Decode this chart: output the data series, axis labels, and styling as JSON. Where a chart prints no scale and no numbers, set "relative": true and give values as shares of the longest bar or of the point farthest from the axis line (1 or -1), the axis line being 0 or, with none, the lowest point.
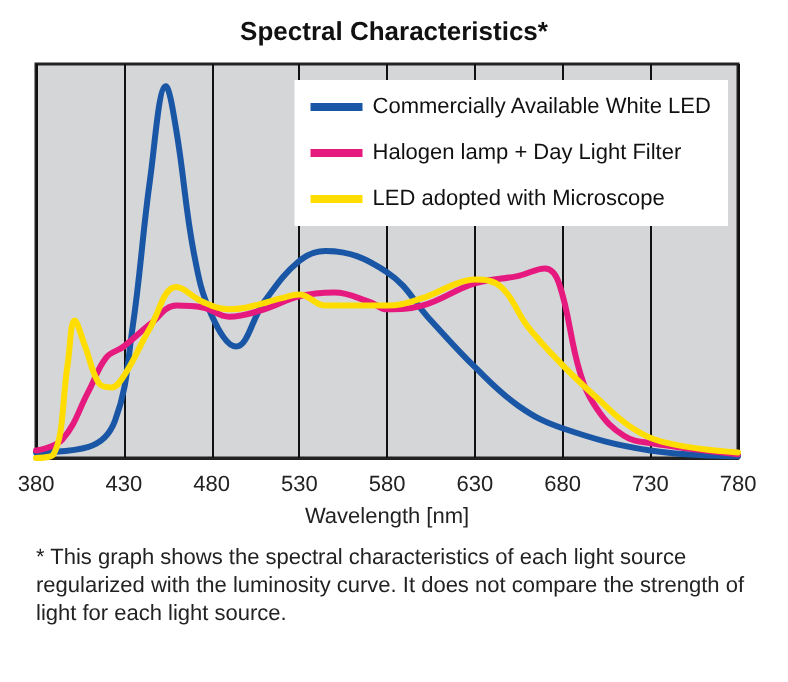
{
  "chart_data": {
    "type": "line",
    "title": "Spectral Characteristics*",
    "xlabel": "Wavelength [nm]",
    "relative": true,
    "xlim": [
      380,
      780
    ],
    "xticks": [
      380,
      430,
      480,
      530,
      580,
      630,
      680,
      730,
      780
    ],
    "grid": "x",
    "legend": "top right",
    "marker": "none",
    "line_style": "solid",
    "annotations": [
      "* This graph shows the spectral characteristics of each light source regularized with the luminosity curve. It does not compare the strength of light for each light source."
    ],
    "series": [
      {
        "name": "Commercially Available White LED",
        "color": "#1a56a6",
        "x": [
          380,
          410,
          425,
          435,
          445,
          454,
          460,
          470,
          480,
          494,
          510,
          530,
          545,
          580,
          605,
          630,
          655,
          680,
          730,
          780
        ],
        "values": [
          0.015,
          0.03,
          0.1,
          0.35,
          0.75,
          1,
          0.88,
          0.55,
          0.385,
          0.3,
          0.42,
          0.53,
          0.557,
          0.5,
          0.37,
          0.245,
          0.14,
          0.08,
          0.02,
          0.005
        ]
      },
      {
        "name": "Halogen lamp + Day Light Filter",
        "color": "#e6197f",
        "x": [
          380,
          395,
          410,
          420,
          430,
          445,
          460,
          475,
          490,
          510,
          530,
          550,
          570,
          580,
          600,
          630,
          655,
          670,
          678,
          690,
          700,
          715,
          730,
          780
        ],
        "values": [
          0.02,
          0.05,
          0.18,
          0.27,
          0.3,
          0.36,
          0.41,
          0.405,
          0.38,
          0.4,
          0.435,
          0.445,
          0.42,
          0.4,
          0.41,
          0.47,
          0.49,
          0.51,
          0.47,
          0.23,
          0.13,
          0.06,
          0.04,
          0.01
        ]
      },
      {
        "name": "LED adopted with Microscope",
        "color": "#ffdd00",
        "x": [
          380,
          390,
          398,
          402,
          408,
          416,
          423,
          430,
          445,
          460,
          475,
          490,
          500,
          520,
          530,
          545,
          560,
          580,
          600,
          620,
          630,
          645,
          660,
          680,
          700,
          720,
          740,
          780
        ],
        "values": [
          0,
          0.01,
          0.25,
          0.37,
          0.3,
          0.2,
          0.19,
          0.22,
          0.35,
          0.46,
          0.42,
          0.4,
          0.405,
          0.43,
          0.44,
          0.41,
          0.41,
          0.41,
          0.43,
          0.47,
          0.48,
          0.46,
          0.355,
          0.25,
          0.16,
          0.08,
          0.04,
          0.015
        ]
      }
    ]
  }
}
